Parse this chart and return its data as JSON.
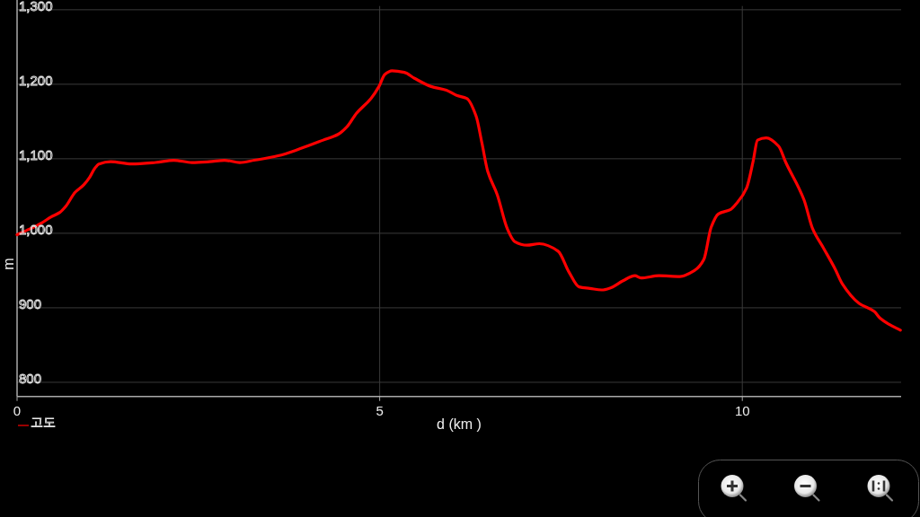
{
  "chart_data": {
    "type": "line",
    "xlabel": "d (km )",
    "ylabel": "m",
    "xlim": [
      0,
      12.19
    ],
    "xticks": [
      0,
      5,
      10
    ],
    "ylim": [
      781,
      1305
    ],
    "yticks": [
      800,
      900,
      {
        "value": 1000,
        "label": "1,000"
      },
      {
        "value": 1100,
        "label": "1,100"
      },
      {
        "value": 1200,
        "label": "1,200"
      },
      {
        "value": 1300,
        "label": "1,300"
      }
    ],
    "grid": true,
    "legend": "bottom left",
    "series": [
      {
        "name": "고도",
        "color": "#ff0000",
        "x": [
          0,
          0.18,
          0.34,
          0.47,
          0.59,
          0.67,
          0.8,
          0.92,
          1.0,
          1.07,
          1.13,
          1.29,
          1.58,
          1.91,
          2.16,
          2.41,
          2.65,
          2.86,
          3.07,
          3.27,
          3.6,
          3.89,
          4.22,
          4.43,
          4.55,
          4.68,
          4.88,
          4.99,
          5.07,
          5.17,
          5.34,
          5.48,
          5.71,
          5.92,
          6.06,
          6.2,
          6.33,
          6.41,
          6.49,
          6.62,
          6.76,
          6.86,
          7.03,
          7.2,
          7.46,
          7.61,
          7.75,
          7.9,
          8.06,
          8.19,
          8.35,
          8.52,
          8.6,
          8.85,
          9.14,
          9.34,
          9.47,
          9.57,
          9.67,
          9.84,
          9.92,
          10.06,
          10.15,
          10.21,
          10.33,
          10.5,
          10.6,
          10.85,
          10.97,
          11.12,
          11.28,
          11.38,
          11.61,
          11.82,
          11.9,
          12.02,
          12.18
        ],
        "values": [
          998,
          1006,
          1014,
          1022,
          1028,
          1036,
          1055,
          1065,
          1075,
          1087,
          1093,
          1096,
          1093,
          1095,
          1098,
          1095,
          1096,
          1098,
          1095,
          1098,
          1104,
          1113,
          1125,
          1133,
          1143,
          1161,
          1181,
          1197,
          1213,
          1218,
          1216,
          1208,
          1197,
          1192,
          1185,
          1181,
          1157,
          1121,
          1083,
          1052,
          1006,
          989,
          984,
          986,
          976,
          948,
          928,
          926,
          924,
          927,
          936,
          943,
          940,
          943,
          942,
          950,
          965,
          1008,
          1026,
          1032,
          1040,
          1061,
          1097,
          1125,
          1128,
          1117,
          1095,
          1045,
          1006,
          980,
          952,
          932,
          906,
          895,
          886,
          878,
          870
        ]
      }
    ]
  }
}
